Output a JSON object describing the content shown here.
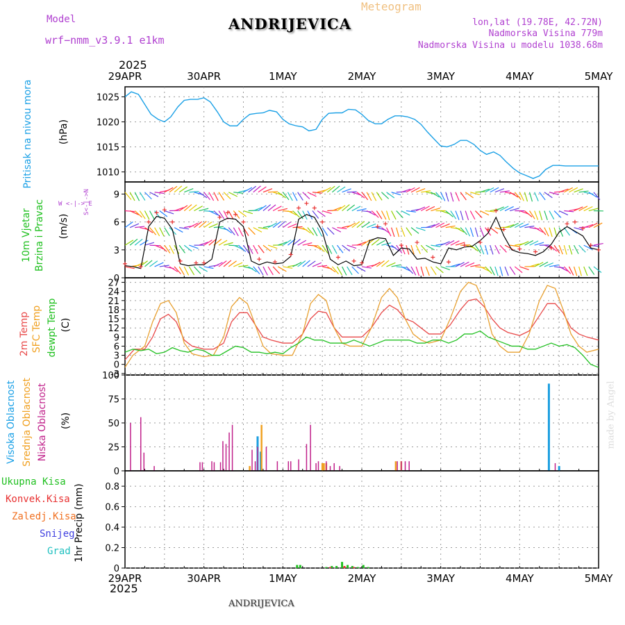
{
  "header": {
    "model_label": "Model",
    "model_value": "wrf−nmm_v3.9.1  e1km",
    "title": "ANDRIJEVICA",
    "meteogram_label": "Meteogram",
    "lonlat": "lon,lat (19.78E, 42.72N)",
    "altitude": "Nadmorska Visina 779m",
    "model_altitude": "Nadmorska Visina u modelu 1038.68m",
    "year_top": "2025",
    "year_bottom": "2025",
    "footer_title": "ANDRIJEVICA",
    "watermark": "made by Angel"
  },
  "dates": [
    "29APR",
    "30APR",
    "1MAY",
    "2MAY",
    "3MAY",
    "4MAY",
    "5MAY"
  ],
  "panel_labels": {
    "pressure": {
      "name": "Pritisak na nivou mora",
      "unit": "(hPa)"
    },
    "wind": {
      "line1": "10m Vjetar",
      "line2": "Brzina i Pravac",
      "unit": "(m/s)",
      "compass": "W <-|-> E",
      "compass_ns": "S<-|->N"
    },
    "temp": {
      "l1": "2m Temp",
      "l2": "SFC Temp",
      "l3": "dewpt Temp",
      "unit": "(C)"
    },
    "cloud": {
      "l1": "Visoka Oblacnost",
      "l2": "Srednja Oblacnost",
      "l3": "Niska Oblacnost",
      "unit": "(%)"
    },
    "precip": {
      "items": [
        "Ukupna Kisa",
        "Konvek.Kisa",
        "Zaledj.Kisa",
        "Snijeg",
        "Grad"
      ],
      "unit": "1hr Precip (mm)"
    }
  },
  "colors": {
    "pressure": "#1aa0e6",
    "wind_speed": "#000000",
    "wind_gust": "#e83030",
    "t2m": "#e84848",
    "tsfc": "#e8a030",
    "dewpt": "#20c020",
    "cloud_high": "#1a9ee0",
    "cloud_mid": "#f0a020",
    "cloud_low": "#c0208a",
    "rain_total": "#20c020",
    "rain_conv": "#e83030",
    "rain_frz": "#f07020",
    "snow": "#4040e0",
    "hail": "#20c0c0",
    "label_blue": "#1aa0e6",
    "label_purple": "#b040d0",
    "label_green": "#20c020",
    "label_red": "#e83030",
    "label_orange": "#f0a020",
    "label_magenta": "#c0208a"
  },
  "chart_data": [
    {
      "type": "line",
      "title": "Pritisak na nivou mora",
      "ylabel": "(hPa)",
      "y_ticks": [
        1010,
        1015,
        1020,
        1025
      ],
      "ylim": [
        1008,
        1027
      ],
      "x_ticks": [
        "29APR",
        "30APR",
        "1MAY",
        "2MAY",
        "3MAY",
        "4MAY",
        "5MAY"
      ],
      "xlim_days": [
        0,
        6
      ],
      "series": [
        {
          "name": "Pritisak na nivou mora",
          "x": [
            0,
            0.08,
            0.17,
            0.25,
            0.33,
            0.42,
            0.5,
            0.58,
            0.67,
            0.75,
            0.83,
            0.92,
            1.0,
            1.08,
            1.17,
            1.25,
            1.33,
            1.42,
            1.5,
            1.58,
            1.67,
            1.75,
            1.83,
            1.92,
            2.0,
            2.08,
            2.17,
            2.25,
            2.33,
            2.42,
            2.5,
            2.58,
            2.67,
            2.75,
            2.83,
            2.92,
            3.0,
            3.08,
            3.17,
            3.25,
            3.33,
            3.42,
            3.5,
            3.58,
            3.67,
            3.75,
            3.83,
            3.92,
            4.0,
            4.08,
            4.17,
            4.25,
            4.33,
            4.42,
            4.5,
            4.58,
            4.67,
            4.75,
            4.83,
            4.92,
            5.0,
            5.08,
            5.17,
            5.25,
            5.33,
            5.42,
            5.5,
            5.58,
            5.67,
            5.75,
            5.83,
            5.92,
            6.0
          ],
          "values": [
            1025,
            1026,
            1025.5,
            1023.5,
            1021.5,
            1020.5,
            1020,
            1021,
            1023,
            1024.3,
            1024.5,
            1024.5,
            1024.8,
            1024,
            1022,
            1020,
            1019.2,
            1019.2,
            1020.5,
            1021.5,
            1021.7,
            1021.8,
            1022.3,
            1022,
            1020.5,
            1019.6,
            1019.2,
            1019,
            1018.2,
            1018.5,
            1020.5,
            1021.7,
            1021.8,
            1021.8,
            1022.5,
            1022.4,
            1021.5,
            1020.3,
            1019.6,
            1019.6,
            1020.5,
            1021.2,
            1021.2,
            1021,
            1020.5,
            1019.5,
            1018,
            1016.5,
            1015.2,
            1015,
            1015.5,
            1016.3,
            1016.3,
            1015.5,
            1014.3,
            1013.5,
            1014,
            1013.3,
            1012,
            1010.7,
            1009.8,
            1009.3,
            1008.7,
            1009.2,
            1010.5,
            1011.3,
            1011.3,
            1011.2,
            1011.2,
            1011.2,
            1011.2,
            1011.2,
            1011.2
          ]
        }
      ]
    },
    {
      "type": "line",
      "title": "10m Vjetar Brzina i Pravac",
      "ylabel": "(m/s)",
      "y_ticks": [
        0,
        3,
        6,
        9
      ],
      "ylim": [
        0,
        10.3
      ],
      "x_ticks": [
        "29APR",
        "30APR",
        "1MAY",
        "2MAY",
        "3MAY",
        "4MAY",
        "5MAY"
      ],
      "series": [
        {
          "name": "speed",
          "x": [
            0,
            0.1,
            0.2,
            0.3,
            0.4,
            0.5,
            0.6,
            0.7,
            0.8,
            0.9,
            1.0,
            1.1,
            1.2,
            1.3,
            1.4,
            1.5,
            1.6,
            1.7,
            1.8,
            1.9,
            2.0,
            2.1,
            2.2,
            2.3,
            2.4,
            2.5,
            2.6,
            2.7,
            2.8,
            2.9,
            3.0,
            3.1,
            3.2,
            3.3,
            3.4,
            3.5,
            3.6,
            3.7,
            3.8,
            3.9,
            4.0,
            4.1,
            4.2,
            4.3,
            4.4,
            4.5,
            4.6,
            4.7,
            4.8,
            4.9,
            5.0,
            5.1,
            5.2,
            5.3,
            5.4,
            5.5,
            5.6,
            5.7,
            5.8,
            5.9,
            6.0
          ],
          "values": [
            1.3,
            1.2,
            1.0,
            5.5,
            6.6,
            6.4,
            5.2,
            1.5,
            1.3,
            1.4,
            1.4,
            2.0,
            6.0,
            6.4,
            6.3,
            5.5,
            1.8,
            1.4,
            1.7,
            1.5,
            1.6,
            2.3,
            6.3,
            6.8,
            6.5,
            5.0,
            2.0,
            1.4,
            1.8,
            1.3,
            1.4,
            4.0,
            4.3,
            4.2,
            2.4,
            3.2,
            3.1,
            2.0,
            2.1,
            1.7,
            1.5,
            3.2,
            3.0,
            3.3,
            3.4,
            4.0,
            4.8,
            6.5,
            4.5,
            3.0,
            2.7,
            2.6,
            2.4,
            2.8,
            3.6,
            4.9,
            5.5,
            5.0,
            4.5,
            3.2,
            3.0
          ]
        },
        {
          "name": "gust",
          "x": [
            0,
            0.2,
            0.3,
            0.4,
            0.5,
            0.6,
            0.7,
            0.9,
            1.0,
            1.2,
            1.3,
            1.4,
            1.5,
            1.7,
            1.9,
            2.1,
            2.2,
            2.3,
            2.4,
            2.5,
            2.7,
            2.9,
            3.0,
            3.2,
            3.3,
            3.5,
            3.7,
            3.9,
            4.1,
            4.3,
            4.5,
            4.6,
            4.7,
            4.8,
            5.0,
            5.2,
            5.4,
            5.6,
            5.7,
            5.8,
            5.9,
            6.0
          ],
          "values": [
            1.5,
            1.2,
            6.0,
            7.0,
            7.3,
            6.0,
            1.8,
            1.6,
            1.6,
            6.5,
            7.0,
            6.8,
            6.0,
            2.0,
            1.7,
            2.5,
            7.5,
            8.0,
            7.5,
            6.0,
            2.2,
            1.8,
            1.6,
            5.5,
            5.8,
            3.5,
            3.8,
            2.2,
            1.7,
            3.5,
            3.8,
            5.2,
            7.2,
            5.2,
            3.1,
            2.8,
            3.2,
            5.8,
            6.0,
            5.3,
            3.5,
            3.0
          ]
        }
      ]
    },
    {
      "type": "line",
      "title": "Temperature",
      "ylabel": "(C)",
      "y_ticks": [
        -3,
        0,
        3,
        6,
        9,
        12,
        15,
        18,
        21,
        24,
        27
      ],
      "ylim": [
        -3.5,
        28.5
      ],
      "x_ticks": [
        "29APR",
        "30APR",
        "1MAY",
        "2MAY",
        "3MAY",
        "4MAY",
        "5MAY"
      ],
      "series": [
        {
          "name": "2m Temp",
          "x": [
            0,
            0.12,
            0.25,
            0.35,
            0.45,
            0.55,
            0.65,
            0.75,
            0.85,
            1.0,
            1.12,
            1.25,
            1.35,
            1.45,
            1.55,
            1.65,
            1.75,
            1.85,
            2.0,
            2.12,
            2.25,
            2.35,
            2.45,
            2.55,
            2.65,
            2.75,
            2.85,
            3.0,
            3.12,
            3.25,
            3.35,
            3.45,
            3.55,
            3.65,
            3.75,
            3.85,
            4.0,
            4.12,
            4.25,
            4.35,
            4.45,
            4.55,
            4.65,
            4.75,
            4.85,
            5.0,
            5.12,
            5.25,
            5.35,
            5.45,
            5.55,
            5.65,
            5.75,
            5.85,
            6.0
          ],
          "values": [
            1.5,
            5,
            5,
            9,
            15,
            16.5,
            14,
            8,
            6,
            5,
            5,
            7,
            14,
            17,
            17,
            13,
            9,
            8,
            7,
            7,
            10,
            15,
            17.5,
            17,
            12,
            9,
            9,
            9,
            12,
            17,
            19.5,
            18,
            15,
            14,
            12,
            10,
            10,
            13,
            18,
            21,
            21.5,
            19,
            15,
            12,
            10.5,
            9.5,
            11,
            16,
            20,
            20,
            17,
            12,
            10,
            9,
            8
          ]
        },
        {
          "name": "SFC Temp",
          "x": [
            0,
            0.1,
            0.25,
            0.35,
            0.45,
            0.55,
            0.65,
            0.75,
            0.85,
            1.0,
            1.12,
            1.25,
            1.35,
            1.45,
            1.55,
            1.65,
            1.75,
            1.85,
            2.0,
            2.12,
            2.25,
            2.35,
            2.45,
            2.55,
            2.65,
            2.75,
            2.85,
            3.0,
            3.12,
            3.25,
            3.35,
            3.45,
            3.55,
            3.65,
            3.75,
            3.85,
            4.0,
            4.12,
            4.25,
            4.35,
            4.45,
            4.55,
            4.65,
            4.75,
            4.85,
            5.0,
            5.12,
            5.25,
            5.35,
            5.45,
            5.55,
            5.65,
            5.75,
            5.85,
            6.0
          ],
          "values": [
            -1,
            3,
            6,
            14,
            20,
            21,
            17,
            7,
            3.5,
            2.5,
            3,
            9,
            19,
            22,
            20,
            13,
            6,
            3.5,
            3,
            3,
            10,
            20,
            23,
            21,
            12,
            7,
            6,
            6,
            12,
            22,
            25,
            22,
            15,
            10,
            8,
            7,
            8,
            15,
            24,
            27,
            26,
            20,
            10,
            6,
            4,
            4,
            10,
            21,
            26,
            25,
            18,
            10,
            6,
            4,
            5
          ]
        },
        {
          "name": "dewpt Temp",
          "x": [
            0,
            0.1,
            0.2,
            0.3,
            0.4,
            0.5,
            0.6,
            0.7,
            0.8,
            0.9,
            1.0,
            1.1,
            1.2,
            1.3,
            1.4,
            1.5,
            1.6,
            1.7,
            1.8,
            1.9,
            2.0,
            2.1,
            2.2,
            2.3,
            2.4,
            2.5,
            2.6,
            2.7,
            2.8,
            2.9,
            3.0,
            3.1,
            3.2,
            3.3,
            3.4,
            3.5,
            3.6,
            3.7,
            3.8,
            3.9,
            4.0,
            4.1,
            4.2,
            4.3,
            4.4,
            4.5,
            4.6,
            4.7,
            4.8,
            4.9,
            5.0,
            5.1,
            5.2,
            5.3,
            5.4,
            5.5,
            5.6,
            5.7,
            5.8,
            5.9,
            6.0
          ],
          "values": [
            4,
            5,
            4.5,
            5,
            3.5,
            4,
            5.5,
            4.5,
            4,
            5,
            4.5,
            3,
            3,
            4.5,
            6,
            5.5,
            4,
            4,
            3.5,
            4,
            3.5,
            5.5,
            7,
            9,
            8,
            8,
            7,
            7,
            7,
            8,
            7,
            6,
            7,
            8,
            8,
            8,
            8,
            7,
            7,
            8,
            8,
            7,
            8,
            10,
            10,
            11,
            9,
            8,
            7,
            6,
            6,
            5,
            5,
            6,
            7,
            6,
            6.5,
            5.5,
            3,
            0,
            -1
          ]
        }
      ]
    },
    {
      "type": "bar",
      "title": "Oblacnost",
      "ylabel": "(%)",
      "y_ticks": [
        0,
        25,
        50,
        75,
        100
      ],
      "ylim": [
        0,
        100
      ],
      "x_ticks": [
        "29APR",
        "30APR",
        "1MAY",
        "2MAY",
        "3MAY",
        "4MAY",
        "5MAY"
      ],
      "series": [
        {
          "name": "Visoka Oblacnost",
          "x": [
            1.68,
            1.72,
            5.37,
            5.5
          ],
          "values": [
            36,
            20,
            91,
            5
          ]
        },
        {
          "name": "Srednja Oblacnost",
          "x": [
            1.58,
            1.73,
            2.5,
            2.52,
            2.55,
            3.43,
            3.5
          ],
          "values": [
            5,
            48,
            8,
            8,
            8,
            10,
            10
          ]
        },
        {
          "name": "Niska Oblacnost",
          "x": [
            0.07,
            0.2,
            0.24,
            0.37,
            0.95,
            0.98,
            1.1,
            1.13,
            1.21,
            1.24,
            1.28,
            1.32,
            1.36,
            1.61,
            1.65,
            1.68,
            1.79,
            1.93,
            2.07,
            2.1,
            2.2,
            2.3,
            2.35,
            2.42,
            2.45,
            2.55,
            2.6,
            2.65,
            2.72,
            3.45,
            3.5,
            3.55,
            3.6,
            5.45
          ],
          "values": [
            50,
            56,
            19,
            5,
            9,
            9,
            10,
            9,
            9,
            31,
            28,
            40,
            48,
            22,
            10,
            25,
            25,
            10,
            10,
            10,
            12,
            28,
            48,
            8,
            10,
            10,
            5,
            8,
            5,
            10,
            10,
            10,
            10,
            8
          ]
        }
      ]
    },
    {
      "type": "bar",
      "title": "1hr Precip",
      "ylabel": "1hr Precip (mm)",
      "y_ticks": [
        0,
        0.2,
        0.4,
        0.6,
        0.8
      ],
      "ylim": [
        0,
        0.95
      ],
      "x_ticks": [
        "29APR",
        "30APR",
        "1MAY",
        "2MAY",
        "3MAY",
        "4MAY",
        "5MAY"
      ],
      "series": [
        {
          "name": "Ukupna Kisa",
          "x": [
            2.18,
            2.22,
            2.55,
            2.62,
            2.68,
            2.75,
            2.82,
            2.88,
            2.95,
            3.02,
            3.08
          ],
          "values": [
            0.03,
            0.03,
            0.01,
            0.02,
            0.02,
            0.06,
            0.03,
            0.02,
            0.01,
            0.03,
            0.01
          ]
        },
        {
          "name": "Konvek.Kisa",
          "x": [
            2.6,
            2.78,
            2.9
          ],
          "values": [
            0.01,
            0.02,
            0.01
          ]
        },
        {
          "name": "Zaledj.Kisa",
          "x": [],
          "values": []
        },
        {
          "name": "Snijeg",
          "x": [],
          "values": []
        },
        {
          "name": "Grad",
          "x": [],
          "values": []
        }
      ]
    }
  ]
}
